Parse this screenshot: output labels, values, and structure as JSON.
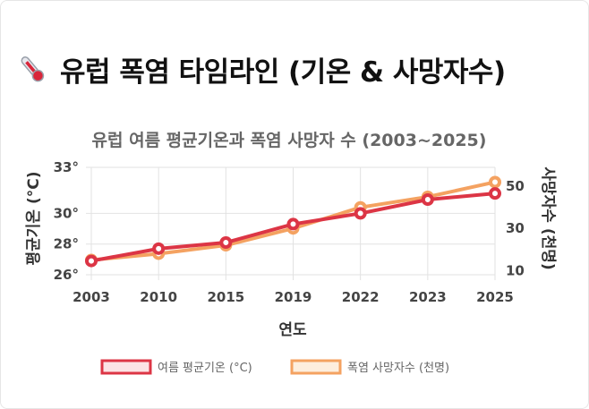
{
  "header": {
    "title": "유럽 폭염 타임라인 (기온 & 사망자수)",
    "icon": "thermometer-icon"
  },
  "chart_data": {
    "type": "line",
    "title": "유럽 여름 평균기온과 폭염 사망자 수 (2003~2025)",
    "xlabel": "연도",
    "ylabel_left": "평균기온 (°C)",
    "ylabel_right": "사망자수 (천명)",
    "categories": [
      "2003",
      "2010",
      "2015",
      "2019",
      "2022",
      "2023",
      "2025"
    ],
    "y_left_ticks": [
      "26°",
      "28°",
      "30°",
      "33°"
    ],
    "y_left_range": [
      26,
      33
    ],
    "y_right_ticks": [
      "10",
      "30",
      "50"
    ],
    "y_right_range": [
      8,
      59
    ],
    "series": [
      {
        "name": "여름 평균기온 (°C)",
        "axis": "left",
        "color": "#dc3545",
        "values": [
          26.9,
          27.7,
          28.1,
          29.3,
          30.0,
          30.9,
          31.3
        ]
      },
      {
        "name": "폭염 사망자수 (천명)",
        "axis": "right",
        "color": "#f4a261",
        "values": [
          15,
          18,
          22,
          30,
          40,
          45,
          52
        ]
      }
    ],
    "grid": true,
    "legend": "bottom"
  }
}
